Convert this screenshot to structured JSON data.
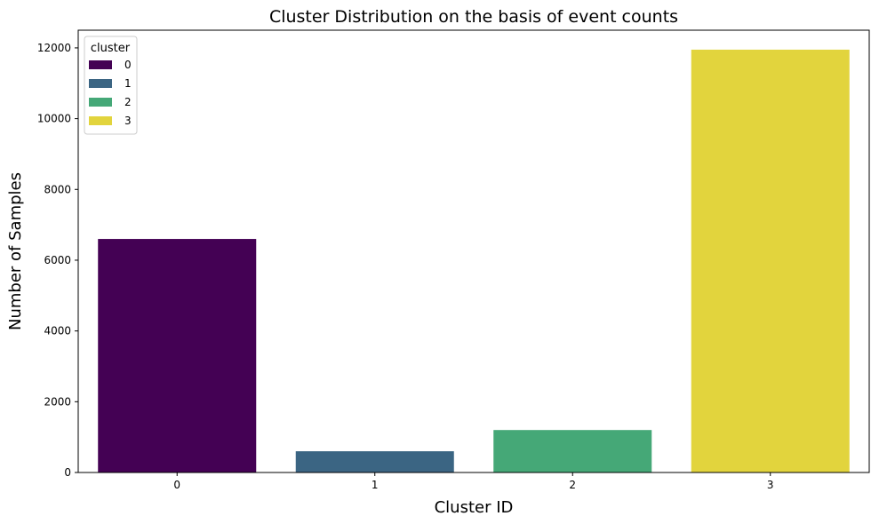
{
  "chart_data": {
    "type": "bar",
    "title": "Cluster Distribution on the basis of event counts",
    "xlabel": "Cluster ID",
    "ylabel": "Number of Samples",
    "categories": [
      "0",
      "1",
      "2",
      "3"
    ],
    "values": [
      6600,
      600,
      1200,
      11950
    ],
    "colors": [
      "#440154",
      "#3b6583",
      "#45a877",
      "#e2d43d"
    ],
    "ylim": [
      0,
      12500
    ],
    "yticks": [
      0,
      2000,
      4000,
      6000,
      8000,
      10000,
      12000
    ],
    "ytick_labels": [
      "0",
      "2000",
      "4000",
      "6000",
      "8000",
      "10000",
      "12000"
    ],
    "grid": false,
    "legend": {
      "title": "cluster",
      "placement": "top-left",
      "entries": [
        "0",
        "1",
        "2",
        "3"
      ]
    }
  }
}
